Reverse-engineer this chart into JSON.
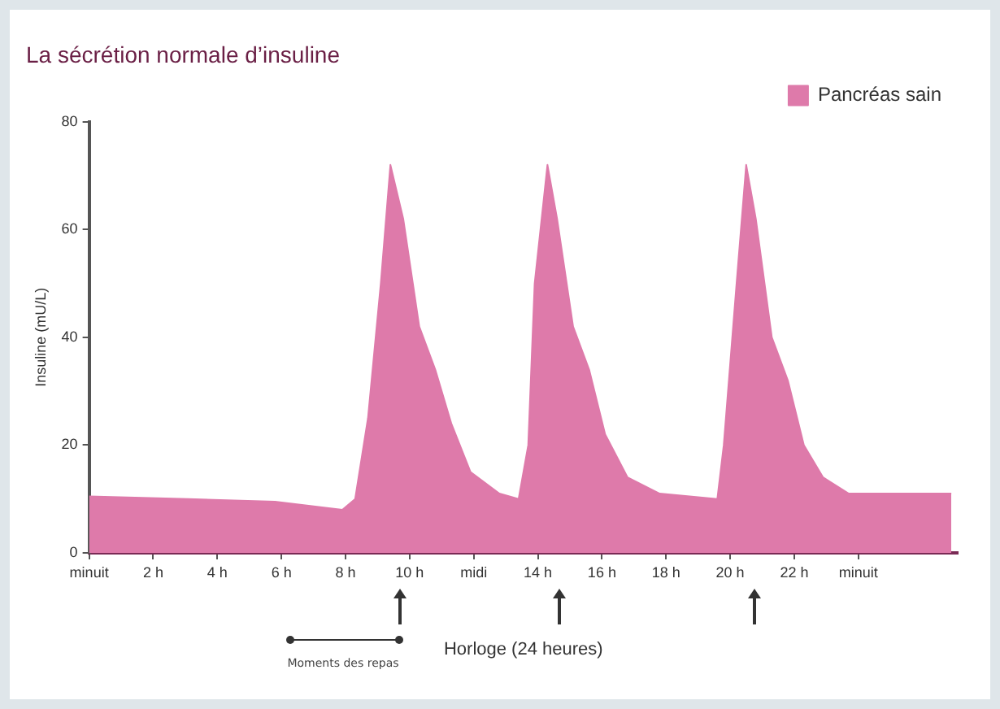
{
  "chart_data": {
    "type": "area",
    "title": "La sécrétion normale d’insuline",
    "xlabel": "Horloge (24 heures)",
    "ylabel": "Insuline (mU/L)",
    "annotations": [
      "Moments des repas"
    ],
    "legend": "top right",
    "x": [
      0,
      3.1,
      5.8,
      7.9,
      8.3,
      8.7,
      9.1,
      9.4,
      9.8,
      10.3,
      10.8,
      11.3,
      11.9,
      12.8,
      13.4,
      13.7,
      13.9,
      14.3,
      14.6,
      15.1,
      15.6,
      16.1,
      16.8,
      17.8,
      19.6,
      19.8,
      20.2,
      20.5,
      20.8,
      21.3,
      21.8,
      22.3,
      22.9,
      23.7,
      26.9
    ],
    "series": [
      {
        "name": "Pancréas sain",
        "color": "#de7aaa",
        "values": [
          10.5,
          10,
          9.5,
          8,
          10,
          25,
          50,
          72,
          62,
          42,
          34,
          24,
          15,
          11,
          10,
          20,
          50,
          72,
          62,
          42,
          34,
          22,
          14,
          11,
          10,
          20,
          50,
          72,
          62,
          40,
          32,
          20,
          14,
          11,
          11
        ]
      }
    ],
    "xlim": [
      0,
      27.1
    ],
    "xticks": [
      {
        "value": 0,
        "label": "minuit"
      },
      {
        "value": 2,
        "label": "2 h"
      },
      {
        "value": 4,
        "label": "4 h"
      },
      {
        "value": 6,
        "label": "6 h"
      },
      {
        "value": 8,
        "label": "8 h"
      },
      {
        "value": 10,
        "label": "10 h"
      },
      {
        "value": 12,
        "label": "midi"
      },
      {
        "value": 14,
        "label": "14 h"
      },
      {
        "value": 16,
        "label": "16 h"
      },
      {
        "value": 18,
        "label": "18 h"
      },
      {
        "value": 20,
        "label": "20 h"
      },
      {
        "value": 22,
        "label": "22 h"
      },
      {
        "value": 24,
        "label": "minuit"
      }
    ],
    "ylim": [
      0,
      80
    ],
    "yticks": [
      0,
      20,
      40,
      60,
      80
    ]
  }
}
